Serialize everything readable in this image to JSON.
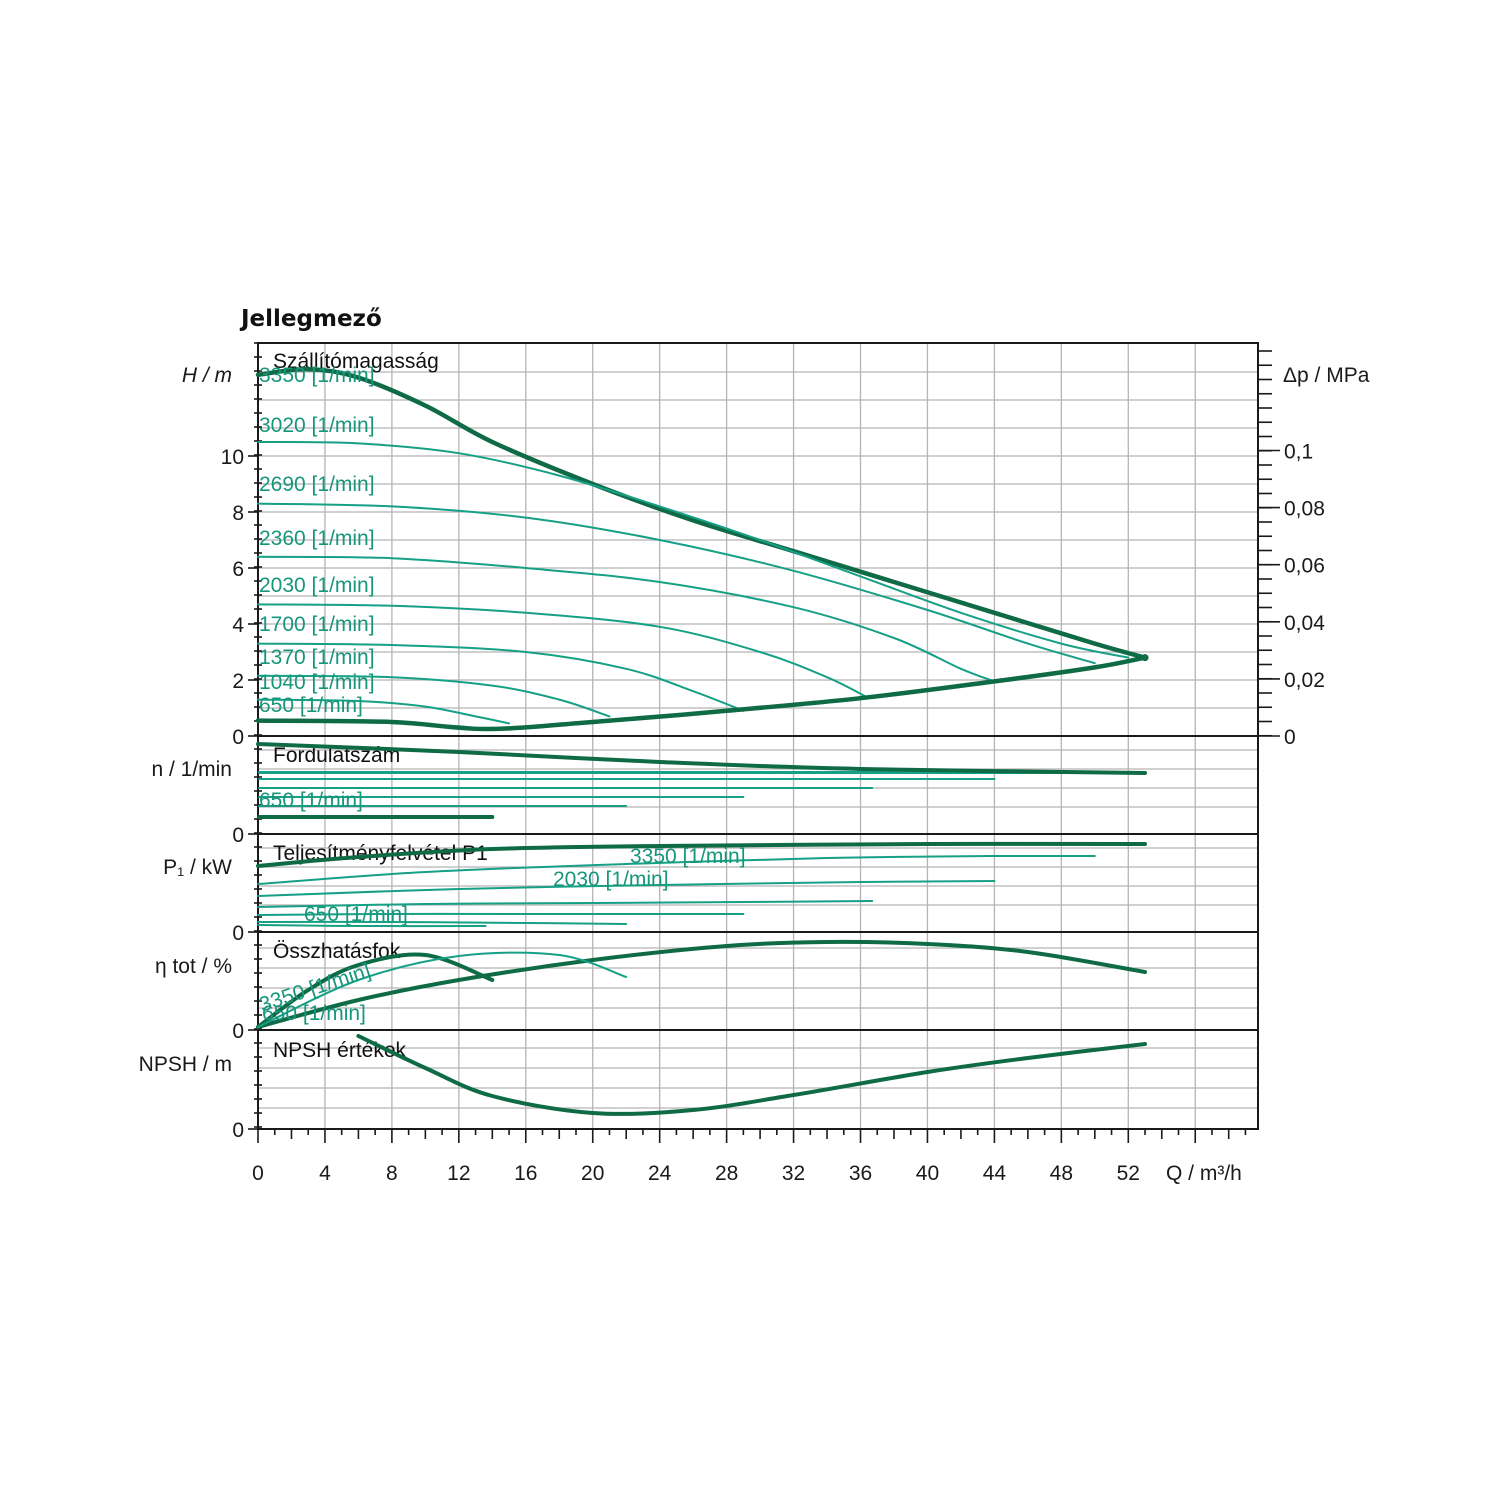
{
  "title": "Jellegmező",
  "colors": {
    "thin": "#16a085",
    "thick": "#0f6b46",
    "grid": "#b5b5b5",
    "text": "#1a1a1a"
  },
  "x_axis": {
    "label": "Q / m³/h",
    "min": 0,
    "max": 59.75,
    "ticks": [
      "0",
      "4",
      "8",
      "12",
      "16",
      "20",
      "24",
      "28",
      "32",
      "36",
      "40",
      "44",
      "48",
      "52"
    ]
  },
  "panels": {
    "head": {
      "title": "Szállítómagasság",
      "ylabel": "H / m",
      "ylabel_right": "Δp / MPa",
      "yticks": [
        "0",
        "2",
        "4",
        "6",
        "8",
        "10"
      ],
      "yticks_right": [
        "0",
        "0,02",
        "0,04",
        "0,06",
        "0,08",
        "0,1"
      ]
    },
    "speed": {
      "title": "Fordulatszám",
      "ylabel": "n / 1/min",
      "yticks": [
        "0"
      ]
    },
    "power": {
      "title": "Teljesítményfelvétel P1",
      "ylabel": "P₁ / kW",
      "yticks": [
        "0"
      ]
    },
    "eff": {
      "title": "Összhatásfok",
      "ylabel": "η tot / %",
      "yticks": [
        "0"
      ]
    },
    "npsh": {
      "title": "NPSH értékek",
      "ylabel": "NPSH / m",
      "yticks": [
        "0"
      ]
    }
  },
  "chart_data": {
    "type": "line",
    "x_unit": "m³/h",
    "head_curves_H_m": [
      {
        "name": "3350 [1/min]",
        "points": [
          [
            0,
            12.9
          ],
          [
            3,
            13.1
          ],
          [
            6,
            12.8
          ],
          [
            10,
            11.8
          ],
          [
            14,
            10.5
          ],
          [
            20,
            9.0
          ],
          [
            26,
            7.7
          ],
          [
            32,
            6.6
          ],
          [
            38,
            5.5
          ],
          [
            44,
            4.4
          ],
          [
            50,
            3.3
          ],
          [
            53,
            2.8
          ]
        ]
      },
      {
        "name": "3020 [1/min]",
        "points": [
          [
            0,
            10.5
          ],
          [
            6,
            10.45
          ],
          [
            12,
            10.1
          ],
          [
            18,
            9.3
          ],
          [
            24,
            8.2
          ],
          [
            30,
            7.0
          ],
          [
            36,
            5.7
          ],
          [
            42,
            4.4
          ],
          [
            48,
            3.3
          ],
          [
            52,
            2.8
          ]
        ]
      },
      {
        "name": "2690 [1/min]",
        "points": [
          [
            0,
            8.3
          ],
          [
            8,
            8.2
          ],
          [
            16,
            7.8
          ],
          [
            24,
            7.0
          ],
          [
            32,
            5.9
          ],
          [
            40,
            4.5
          ],
          [
            46,
            3.3
          ],
          [
            50,
            2.6
          ]
        ]
      },
      {
        "name": "2360 [1/min]",
        "points": [
          [
            0,
            6.4
          ],
          [
            8,
            6.35
          ],
          [
            16,
            6.0
          ],
          [
            24,
            5.5
          ],
          [
            32,
            4.6
          ],
          [
            38,
            3.5
          ],
          [
            42,
            2.4
          ],
          [
            44,
            1.95
          ]
        ]
      },
      {
        "name": "2030 [1/min]",
        "points": [
          [
            0,
            4.7
          ],
          [
            8,
            4.65
          ],
          [
            16,
            4.4
          ],
          [
            24,
            3.9
          ],
          [
            30,
            3.0
          ],
          [
            34,
            2.1
          ],
          [
            36.5,
            1.35
          ]
        ]
      },
      {
        "name": "1700 [1/min]",
        "points": [
          [
            0,
            3.3
          ],
          [
            8,
            3.25
          ],
          [
            16,
            3.0
          ],
          [
            22,
            2.4
          ],
          [
            26,
            1.6
          ],
          [
            29,
            0.9
          ]
        ]
      },
      {
        "name": "1370 [1/min]",
        "points": [
          [
            0,
            2.15
          ],
          [
            8,
            2.1
          ],
          [
            14,
            1.8
          ],
          [
            18,
            1.3
          ],
          [
            21,
            0.7
          ]
        ]
      },
      {
        "name": "1040 [1/min]",
        "points": [
          [
            0,
            1.3
          ],
          [
            6,
            1.25
          ],
          [
            10,
            1.05
          ],
          [
            13,
            0.7
          ],
          [
            15,
            0.45
          ]
        ]
      },
      {
        "name": "650 [1/min]",
        "points": [
          [
            0,
            0.55
          ],
          [
            5,
            0.52
          ],
          [
            9,
            0.45
          ],
          [
            12,
            0.35
          ],
          [
            13.6,
            0.25
          ]
        ]
      }
    ],
    "head_limit_line_H_m": [
      [
        0,
        0.55
      ],
      [
        8,
        0.5
      ],
      [
        13.6,
        0.25
      ],
      [
        20,
        0.5
      ],
      [
        28,
        0.9
      ],
      [
        36,
        1.35
      ],
      [
        44,
        1.95
      ],
      [
        50,
        2.45
      ],
      [
        53,
        2.8
      ]
    ],
    "speed_series": [
      {
        "name": "650 [1/min]",
        "end_q": 14
      },
      {
        "name": "1040 [1/min]",
        "end_q": 22
      },
      {
        "name": "1370 [1/min]",
        "end_q": 29
      },
      {
        "name": "1700 [1/min]",
        "end_q": 36.7
      },
      {
        "name": "2030 [1/min]",
        "end_q": 44
      },
      {
        "name": "2360 [1/min]",
        "end_q": 50
      },
      {
        "name": "3350 [1/min]",
        "end_q": 53
      }
    ],
    "power_curves": [
      {
        "name": "3350 [1/min]",
        "end_q": 53
      },
      {
        "name": "2030 [1/min]",
        "end_q": 44
      },
      {
        "name": "650 [1/min]",
        "end_q": 13.6
      }
    ],
    "eff_curves": [
      {
        "name": "3350 [1/min]",
        "peak_q": 32,
        "end_q": 53
      },
      {
        "name": "650 [1/min]",
        "peak_q": 6,
        "end_q": 14
      }
    ],
    "npsh_curve": {
      "name": "NPSH",
      "min_q": 20,
      "start_q": 6,
      "end_q": 53
    }
  },
  "labels": {
    "speed_3350": "3350 [1/min]",
    "speed_3020": "3020 [1/min]",
    "speed_2690": "2690 [1/min]",
    "speed_2360": "2360 [1/min]",
    "speed_2030": "2030 [1/min]",
    "speed_1700": "1700 [1/min]",
    "speed_1370": "1370 [1/min]",
    "speed_1040": "1040 [1/min]",
    "speed_650": "650 [1/min]"
  }
}
